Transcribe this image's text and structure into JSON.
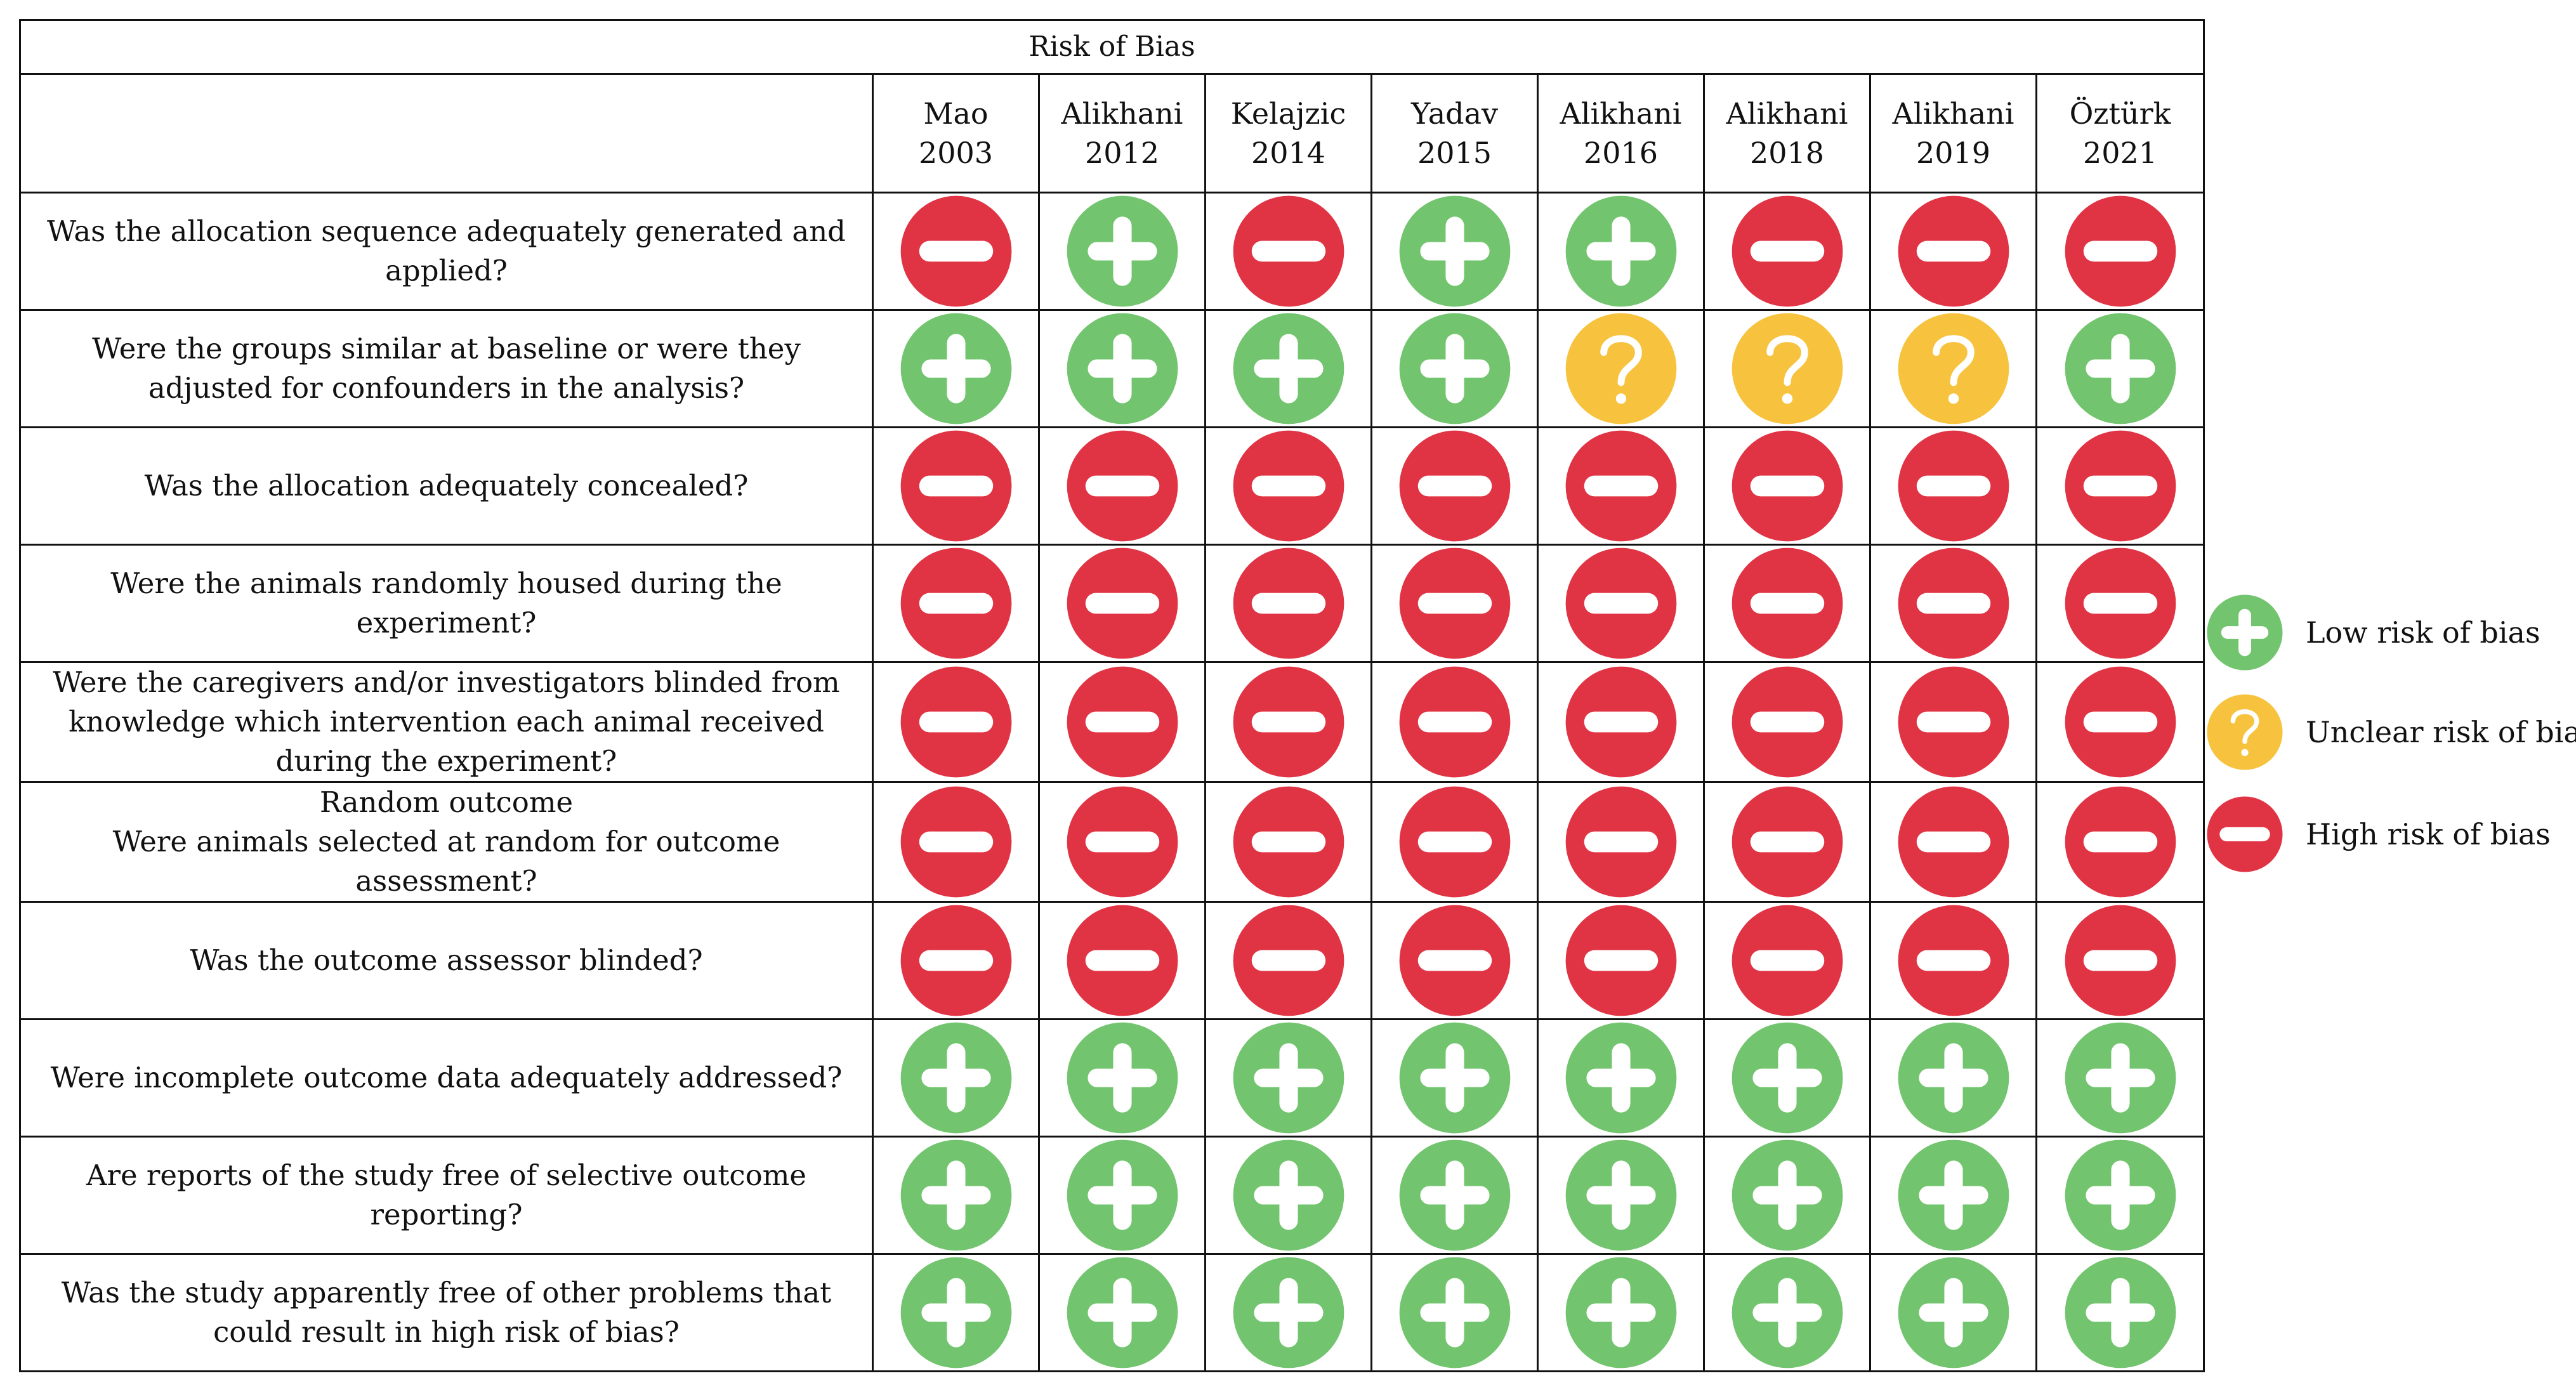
{
  "table": {
    "title": "Risk of Bias",
    "studies": [
      {
        "name": "Mao",
        "year": "2003"
      },
      {
        "name": "Alikhani",
        "year": "2012"
      },
      {
        "name": "Kelajzic",
        "year": "2014"
      },
      {
        "name": "Yadav",
        "year": "2015"
      },
      {
        "name": "Alikhani",
        "year": "2016"
      },
      {
        "name": "Alikhani",
        "year": "2018"
      },
      {
        "name": "Alikhani",
        "year": "2019"
      },
      {
        "name": "Öztürk",
        "year": "2021"
      }
    ],
    "rows": [
      {
        "question": "Was the allocation sequence adequately generated and applied?",
        "judgements": [
          "high",
          "low",
          "high",
          "low",
          "low",
          "high",
          "high",
          "high"
        ]
      },
      {
        "question": "Were the groups similar at baseline or were they adjusted for confounders in the analysis?",
        "judgements": [
          "low",
          "low",
          "low",
          "low",
          "unclear",
          "unclear",
          "unclear",
          "low"
        ]
      },
      {
        "question": "Was the allocation adequately concealed?",
        "judgements": [
          "high",
          "high",
          "high",
          "high",
          "high",
          "high",
          "high",
          "high"
        ]
      },
      {
        "question": "Were the animals randomly housed during the experiment?",
        "judgements": [
          "high",
          "high",
          "high",
          "high",
          "high",
          "high",
          "high",
          "high"
        ]
      },
      {
        "question": "Were the caregivers and/or investigators blinded from knowledge which intervention each animal received during the experiment?",
        "judgements": [
          "high",
          "high",
          "high",
          "high",
          "high",
          "high",
          "high",
          "high"
        ]
      },
      {
        "question": "Random outcome\nWere animals selected at random for outcome assessment?",
        "judgements": [
          "high",
          "high",
          "high",
          "high",
          "high",
          "high",
          "high",
          "high"
        ]
      },
      {
        "question": "Was the outcome assessor blinded?",
        "judgements": [
          "high",
          "high",
          "high",
          "high",
          "high",
          "high",
          "high",
          "high"
        ]
      },
      {
        "question": "Were incomplete outcome data adequately addressed?",
        "judgements": [
          "low",
          "low",
          "low",
          "low",
          "low",
          "low",
          "low",
          "low"
        ]
      },
      {
        "question": "Are reports of the study free of selective outcome reporting?",
        "judgements": [
          "low",
          "low",
          "low",
          "low",
          "low",
          "low",
          "low",
          "low"
        ]
      },
      {
        "question": "Was the study apparently free of other problems that could result in high risk of bias?",
        "judgements": [
          "low",
          "low",
          "low",
          "low",
          "low",
          "low",
          "low",
          "low"
        ]
      }
    ]
  },
  "legend": [
    {
      "key": "low",
      "label": "Low risk of bias"
    },
    {
      "key": "unclear",
      "label": "Unclear risk of bias"
    },
    {
      "key": "high",
      "label": "High risk of bias"
    }
  ],
  "colors": {
    "low": "#72c46e",
    "unclear": "#f7c33f",
    "high": "#e03444",
    "symbol": "#ffffff",
    "border": "#111111"
  }
}
